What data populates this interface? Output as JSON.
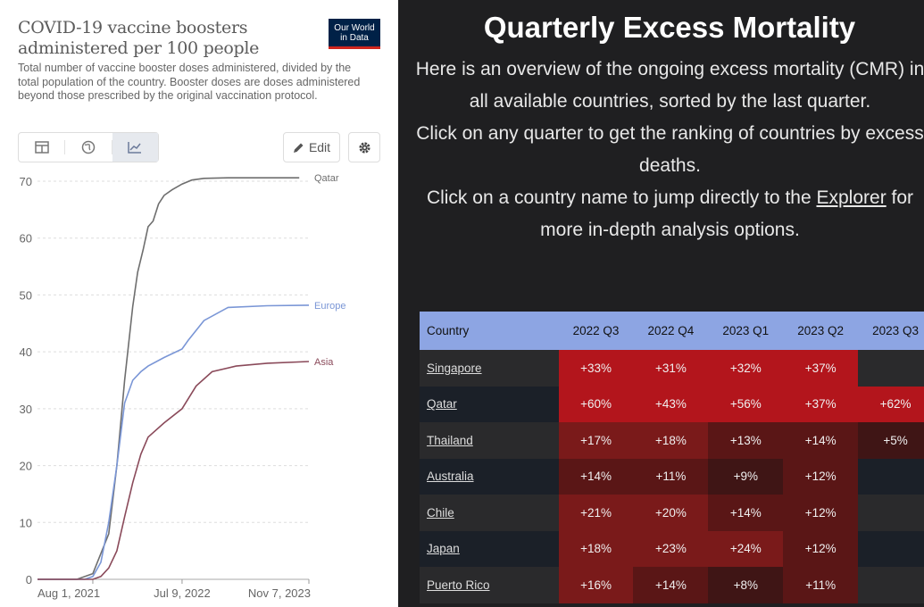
{
  "left_panel": {
    "title": "COVID-19 vaccine boosters administered per 100 people",
    "subtitle": "Total number of vaccine booster doses administered, divided by the total population of the country. Booster doses are doses administered beyond those prescribed by the original vaccination protocol.",
    "logo_line1": "Our World",
    "logo_line2": "in Data",
    "tabs": [
      {
        "icon": "table-icon",
        "active": false
      },
      {
        "icon": "globe-icon",
        "active": false
      },
      {
        "icon": "line-chart-icon",
        "active": true
      }
    ],
    "edit_label": "Edit",
    "settings_icon": "gear-icon"
  },
  "chart_data": {
    "type": "line",
    "title": "COVID-19 vaccine boosters administered per 100 people",
    "xlabel": "",
    "ylabel": "",
    "ylim": [
      0,
      70
    ],
    "yticks": [
      0,
      10,
      20,
      30,
      40,
      50,
      60,
      70
    ],
    "x_tick_labels": [
      "Aug 1, 2021",
      "Jul 9, 2022",
      "Nov 7, 2023"
    ],
    "x_tick_dates": [
      "2021-08-01",
      "2022-07-09",
      "2023-11-07"
    ],
    "xlim": [
      "2021-01-01",
      "2023-11-07"
    ],
    "grid": true,
    "legend_placement": "inline-right",
    "series": [
      {
        "name": "Qatar",
        "color": "#6e6e6e",
        "x": [
          "2021-01-01",
          "2021-06-01",
          "2021-08-01",
          "2021-10-01",
          "2021-11-01",
          "2021-12-01",
          "2022-01-01",
          "2022-01-20",
          "2022-02-10",
          "2022-03-01",
          "2022-03-20",
          "2022-04-10",
          "2022-05-01",
          "2022-06-01",
          "2022-07-09",
          "2022-08-15",
          "2022-10-01",
          "2023-01-01",
          "2023-06-01",
          "2023-10-01"
        ],
        "y": [
          0,
          0,
          1,
          8,
          20,
          35,
          48,
          54,
          58,
          62,
          63,
          66,
          67.5,
          68.5,
          69.5,
          70.2,
          70.5,
          70.6,
          70.6,
          70.6
        ]
      },
      {
        "name": "Europe",
        "color": "#7a96d6",
        "x": [
          "2021-01-01",
          "2021-07-01",
          "2021-08-01",
          "2021-09-01",
          "2021-10-01",
          "2021-11-01",
          "2021-12-01",
          "2022-01-01",
          "2022-02-01",
          "2022-03-01",
          "2022-05-01",
          "2022-07-09",
          "2022-08-01",
          "2022-10-01",
          "2023-01-01",
          "2023-06-01",
          "2023-11-07"
        ],
        "y": [
          0,
          0,
          0.5,
          3,
          10,
          20,
          31,
          35,
          36.5,
          37.5,
          39,
          40.5,
          42,
          45.5,
          47.8,
          48.1,
          48.2
        ]
      },
      {
        "name": "Asia",
        "color": "#8a4a5a",
        "x": [
          "2021-01-01",
          "2021-08-01",
          "2021-09-01",
          "2021-10-01",
          "2021-11-01",
          "2021-12-01",
          "2022-01-01",
          "2022-02-01",
          "2022-03-01",
          "2022-05-01",
          "2022-07-09",
          "2022-09-01",
          "2022-11-01",
          "2023-02-01",
          "2023-06-01",
          "2023-11-07"
        ],
        "y": [
          0,
          0,
          0.5,
          2,
          5,
          11,
          17,
          22,
          25,
          27.5,
          30,
          34,
          36.5,
          37.5,
          38,
          38.3
        ]
      }
    ]
  },
  "right_panel": {
    "title": "Quarterly Excess Mortality",
    "para1": "Here is an overview of the ongoing excess mortality (CMR) in all available countries, sorted by the last quarter.",
    "para2": "Click on any quarter to get the ranking of countries by excess deaths.",
    "para3_before": "Click on a country name to jump directly to the",
    "para3_link": "Explorer",
    "para3_after": "for more in-depth analysis options.",
    "table": {
      "headers": [
        "Country",
        "2022 Q3",
        "2022 Q4",
        "2023 Q1",
        "2023 Q2",
        "2023 Q3"
      ],
      "rows": [
        {
          "country": "Singapore",
          "cells": [
            "+33%",
            "+31%",
            "+32%",
            "+37%",
            ""
          ]
        },
        {
          "country": "Qatar",
          "cells": [
            "+60%",
            "+43%",
            "+56%",
            "+37%",
            "+62%"
          ]
        },
        {
          "country": "Thailand",
          "cells": [
            "+17%",
            "+18%",
            "+13%",
            "+14%",
            "+5%"
          ]
        },
        {
          "country": "Australia",
          "cells": [
            "+14%",
            "+11%",
            "+9%",
            "+12%",
            ""
          ]
        },
        {
          "country": "Chile",
          "cells": [
            "+21%",
            "+20%",
            "+14%",
            "+12%",
            ""
          ]
        },
        {
          "country": "Japan",
          "cells": [
            "+18%",
            "+23%",
            "+24%",
            "+12%",
            ""
          ]
        },
        {
          "country": "Puerto Rico",
          "cells": [
            "+16%",
            "+14%",
            "+8%",
            "+11%",
            ""
          ]
        }
      ]
    }
  }
}
